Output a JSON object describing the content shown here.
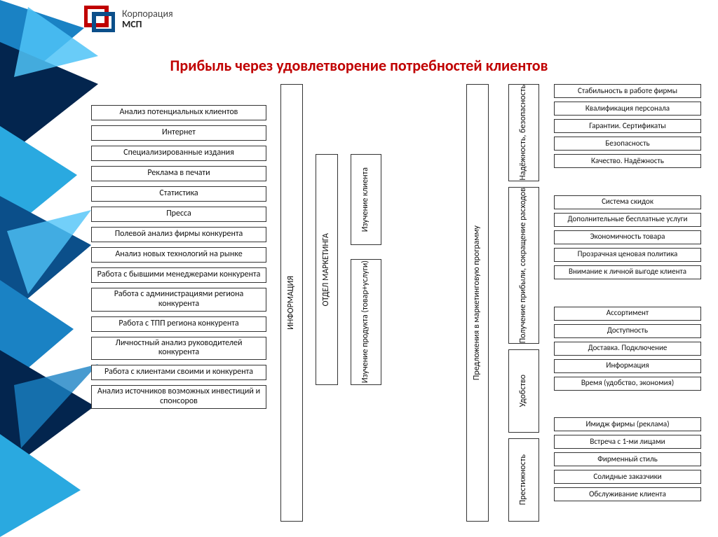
{
  "logo": {
    "line1": "Корпорация",
    "line2": "МСП"
  },
  "title": "Прибыль через удовлетворение потребностей клиентов",
  "colors": {
    "title": "#c00000",
    "border": "#333333",
    "bg": "#ffffff",
    "decoA": "#03254e",
    "decoB": "#0b4f8a",
    "decoC": "#1a82c4",
    "decoD": "#2aa9e0"
  },
  "leftList": [
    "Анализ потенциальных клиентов",
    "Интернет",
    "Специализированные издания",
    "Реклама в печати",
    "Статистика",
    "Пресса",
    "Полевой анализ фирмы конкурента",
    "Анализ новых технологий на рынке",
    "Работа с бывшими менеджерами конкурента",
    "Работа с администрациями региона конкурента",
    "Работа с ТПП региона конкурента",
    "Личностный анализ руководителей конкурента",
    "Работа с клиентами своими и конкурента",
    "Анализ источников возможных инвестиций и спонсоров"
  ],
  "col2": "ИНФОРМАЦИЯ",
  "col3": "ОТДЕЛ МАРКЕТИНГА",
  "col4a": "Изучение клиента",
  "col4b": "Изучение продукта (товар+услуги)",
  "col5": "Предложения в маркетинговую программу",
  "categories": [
    {
      "label": "Надёжность, безопасность",
      "items": [
        "Стабильность в работе фирмы",
        "Квалификация персонала",
        "Гарантии. Сертификаты",
        "Безопасность",
        "Качество. Надёжность"
      ]
    },
    {
      "label": "Получение прибыли, сокращение расходов",
      "items": [
        "Система скидок",
        "Дополнительные бесплатные услуги",
        "Экономичность товара",
        "Прозрачная ценовая политика",
        "Внимание к личной выгоде клиента"
      ]
    },
    {
      "label": "Удобство",
      "items": [
        "Ассортимент",
        "Доступность",
        "Доставка. Подключение",
        "Информация",
        "Время (удобство, экономия)"
      ]
    },
    {
      "label": "Престижность",
      "items": [
        "Имидж фирмы (реклама)",
        "Встреча с 1-ми лицами",
        "Фирменный стиль",
        "Солидные заказчики",
        "Обслуживание клиента"
      ]
    }
  ],
  "deco": {
    "colors": [
      "#03254e",
      "#0b4f8a",
      "#1a82c4",
      "#2aa9e0",
      "#4fc3f7"
    ]
  }
}
